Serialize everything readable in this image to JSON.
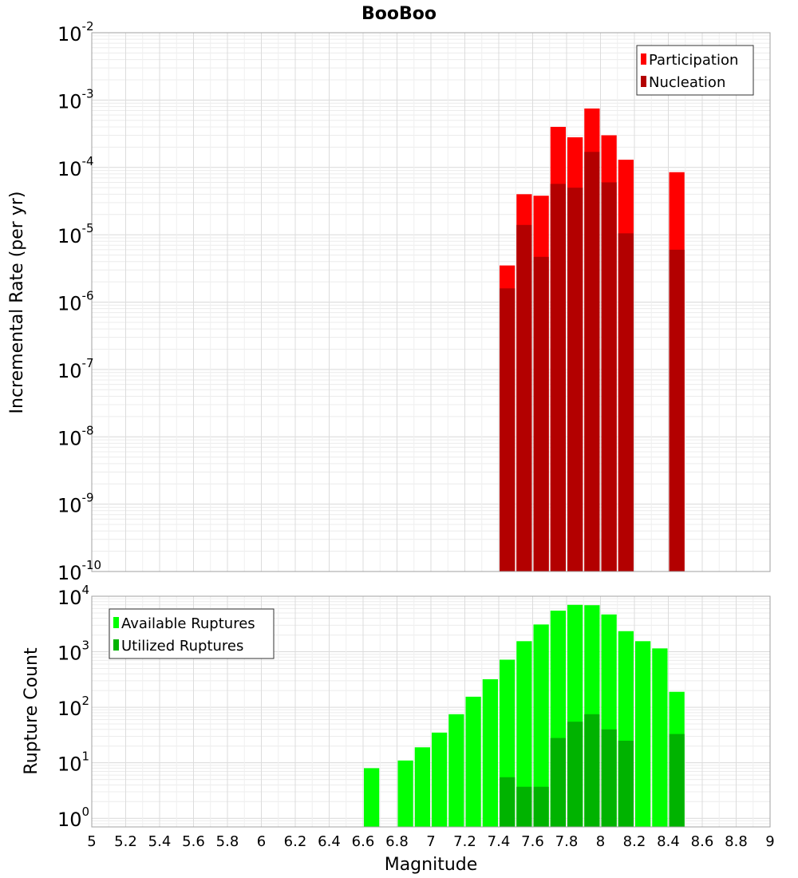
{
  "figure": {
    "title": "BooBoo",
    "xlabel": "Magnitude"
  },
  "colors": {
    "participation": "#ff0000",
    "nucleation": "#b30000",
    "available": "#00ff00",
    "utilized": "#00b300"
  },
  "chart_data": [
    {
      "type": "bar",
      "ylabel": "Incremental Rate (per yr)",
      "yscale": "log",
      "ylim": [
        1e-10,
        0.01
      ],
      "xlim": [
        5,
        9
      ],
      "bin_width": 0.1,
      "grid": true,
      "legend_position": "top-right",
      "x_ticks": [
        "5",
        "5.2",
        "5.4",
        "5.6",
        "5.8",
        "6",
        "6.2",
        "6.4",
        "6.6",
        "6.8",
        "7",
        "7.2",
        "7.4",
        "7.6",
        "7.8",
        "8",
        "8.2",
        "8.4",
        "8.6",
        "8.8",
        "9"
      ],
      "y_ticks": [
        {
          "base": "10",
          "exp": "-10"
        },
        {
          "base": "10",
          "exp": "-9"
        },
        {
          "base": "10",
          "exp": "-8"
        },
        {
          "base": "10",
          "exp": "-7"
        },
        {
          "base": "10",
          "exp": "-6"
        },
        {
          "base": "10",
          "exp": "-5"
        },
        {
          "base": "10",
          "exp": "-4"
        },
        {
          "base": "10",
          "exp": "-3"
        },
        {
          "base": "10",
          "exp": "-2"
        }
      ],
      "x": [
        7.45,
        7.55,
        7.65,
        7.75,
        7.85,
        7.95,
        8.05,
        8.15,
        8.45
      ],
      "series": [
        {
          "name": "Participation",
          "color": "#ff0000",
          "values": [
            3.5e-06,
            4e-05,
            3.8e-05,
            0.0004,
            0.00028,
            0.00075,
            0.0003,
            0.00013,
            8.5e-05
          ]
        },
        {
          "name": "Nucleation",
          "color": "#b30000",
          "values": [
            1.6e-06,
            1.4e-05,
            4.7e-06,
            5.7e-05,
            5e-05,
            0.00017,
            6e-05,
            1.05e-05,
            6e-06
          ]
        }
      ]
    },
    {
      "type": "bar",
      "ylabel": "Rupture Count",
      "yscale": "log",
      "ylim": [
        0.7,
        10000
      ],
      "xlim": [
        5,
        9
      ],
      "bin_width": 0.1,
      "grid": true,
      "legend_position": "top-left",
      "y_ticks": [
        {
          "base": "10",
          "exp": "0"
        },
        {
          "base": "10",
          "exp": "1"
        },
        {
          "base": "10",
          "exp": "2"
        },
        {
          "base": "10",
          "exp": "3"
        },
        {
          "base": "10",
          "exp": "4"
        }
      ],
      "series": [
        {
          "name": "Available Ruptures",
          "color": "#00ff00",
          "x": [
            6.65,
            6.85,
            6.95,
            7.05,
            7.15,
            7.25,
            7.35,
            7.45,
            7.55,
            7.65,
            7.75,
            7.85,
            7.95,
            8.05,
            8.15,
            8.25,
            8.35,
            8.45
          ],
          "values": [
            8,
            11,
            19,
            35,
            75,
            155,
            320,
            720,
            1550,
            3100,
            5500,
            7000,
            6900,
            4700,
            2350,
            1550,
            1150,
            190
          ]
        },
        {
          "name": "Utilized Ruptures",
          "color": "#00b300",
          "x": [
            7.45,
            7.55,
            7.65,
            7.75,
            7.85,
            7.95,
            8.05,
            8.15,
            8.45
          ],
          "values": [
            5.5,
            3.7,
            3.7,
            28,
            55,
            75,
            40,
            25,
            33
          ]
        }
      ]
    }
  ]
}
